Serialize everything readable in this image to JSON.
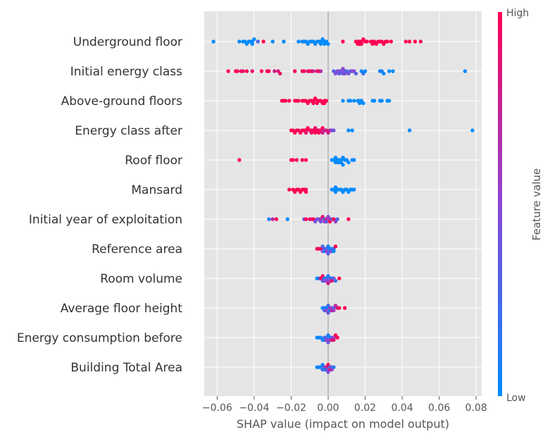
{
  "chart_data": {
    "type": "scatter",
    "subtype": "shap-beeswarm",
    "title": "",
    "xlabel": "SHAP value (impact on model output)",
    "ylabel": "",
    "xlim": [
      -0.067,
      0.083
    ],
    "xticks": [
      -0.06,
      -0.04,
      -0.02,
      0.0,
      0.02,
      0.04,
      0.06,
      0.08
    ],
    "xtick_labels": [
      "−0.06",
      "−0.04",
      "−0.02",
      "0.00",
      "0.02",
      "0.04",
      "0.06",
      "0.08"
    ],
    "grid": true,
    "colorbar": {
      "title": "Feature value",
      "high_label": "High",
      "low_label": "Low",
      "low_color": "#008bfb",
      "mid_color": "#8a46d6",
      "high_color": "#ff0052"
    },
    "features": [
      {
        "name": "Underground floor",
        "x": [
          -0.062,
          -0.048,
          -0.046,
          -0.045,
          -0.044,
          -0.043,
          -0.042,
          -0.041,
          -0.041,
          -0.04,
          -0.038,
          -0.035,
          -0.03,
          -0.024,
          -0.016,
          -0.014,
          -0.013,
          -0.012,
          -0.011,
          -0.01,
          -0.009,
          -0.008,
          -0.007,
          -0.006,
          -0.005,
          -0.004,
          -0.004,
          -0.003,
          -0.002,
          -0.002,
          -0.001,
          0.0,
          0.008,
          0.015,
          0.016,
          0.016,
          0.017,
          0.017,
          0.018,
          0.018,
          0.019,
          0.02,
          0.021,
          0.023,
          0.024,
          0.024,
          0.025,
          0.026,
          0.027,
          0.028,
          0.029,
          0.03,
          0.031,
          0.032,
          0.034,
          0.042,
          0.044,
          0.047,
          0.05
        ],
        "c": [
          0,
          0,
          0,
          0,
          0,
          0,
          0,
          0,
          0,
          0,
          0.3,
          1,
          0,
          0,
          0,
          0,
          0,
          0,
          0,
          0,
          0,
          0,
          0,
          0,
          0,
          0,
          0,
          0,
          0,
          0,
          0,
          0,
          1,
          1,
          1,
          1,
          1,
          1,
          1,
          1,
          1,
          1,
          1,
          1,
          1,
          1,
          1,
          1,
          1,
          1,
          1,
          1,
          1,
          1,
          1,
          1,
          1,
          1,
          1
        ]
      },
      {
        "name": "Initial energy class",
        "x": [
          -0.054,
          -0.05,
          -0.049,
          -0.047,
          -0.046,
          -0.044,
          -0.041,
          -0.036,
          -0.033,
          -0.032,
          -0.029,
          -0.027,
          -0.026,
          -0.018,
          -0.014,
          -0.013,
          -0.011,
          -0.01,
          -0.009,
          -0.008,
          -0.006,
          -0.005,
          -0.004,
          0.003,
          0.004,
          0.005,
          0.006,
          0.006,
          0.007,
          0.008,
          0.008,
          0.009,
          0.009,
          0.01,
          0.011,
          0.012,
          0.013,
          0.014,
          0.015,
          0.018,
          0.019,
          0.02,
          0.028,
          0.029,
          0.03,
          0.033,
          0.035,
          0.074
        ],
        "c": [
          1,
          1,
          1,
          0.95,
          0.9,
          1,
          0.9,
          1,
          0.9,
          1,
          0.8,
          0.85,
          0.9,
          1,
          0.9,
          1,
          0.8,
          1,
          0.9,
          0.8,
          0.85,
          1,
          0.7,
          0.3,
          0.45,
          0.5,
          0.4,
          0.35,
          0.45,
          0.4,
          0.5,
          0.35,
          0.45,
          0.3,
          0.4,
          0.35,
          0.45,
          0.5,
          0.3,
          0.0,
          0.2,
          0.0,
          0.0,
          0.1,
          0.0,
          0.0,
          0.0,
          0.0
        ]
      },
      {
        "name": "Above-ground floors",
        "x": [
          -0.025,
          -0.024,
          -0.023,
          -0.021,
          -0.018,
          -0.017,
          -0.016,
          -0.014,
          -0.013,
          -0.012,
          -0.011,
          -0.01,
          -0.009,
          -0.008,
          -0.008,
          -0.007,
          -0.006,
          -0.006,
          -0.005,
          -0.004,
          -0.003,
          -0.002,
          -0.002,
          -0.001,
          0.008,
          0.011,
          0.012,
          0.014,
          0.016,
          0.017,
          0.017,
          0.018,
          0.019,
          0.024,
          0.025,
          0.028,
          0.029,
          0.032,
          0.033
        ],
        "c": [
          1,
          1,
          1,
          1,
          1,
          1,
          1,
          1,
          1,
          1,
          1,
          1,
          1,
          1,
          1,
          1,
          1,
          1,
          1,
          1,
          1,
          1,
          1,
          1,
          0,
          0,
          0,
          0,
          0,
          0,
          0,
          0,
          0,
          0,
          0,
          0,
          0,
          0,
          0
        ]
      },
      {
        "name": "Energy class after",
        "x": [
          -0.02,
          -0.019,
          -0.018,
          -0.017,
          -0.016,
          -0.015,
          -0.014,
          -0.013,
          -0.012,
          -0.012,
          -0.011,
          -0.01,
          -0.009,
          -0.009,
          -0.008,
          -0.007,
          -0.007,
          -0.006,
          -0.005,
          -0.005,
          -0.004,
          -0.003,
          -0.003,
          -0.002,
          -0.001,
          0.0,
          0.001,
          0.002,
          0.003,
          0.011,
          0.013,
          0.044,
          0.078
        ],
        "c": [
          1,
          1,
          1,
          1,
          0.95,
          1,
          1,
          1,
          1,
          0.9,
          1,
          1,
          1,
          0.9,
          1,
          1,
          0.9,
          1,
          0.95,
          1,
          0.9,
          0.8,
          1,
          0.7,
          0.85,
          0.8,
          0.75,
          0.5,
          0.4,
          0.0,
          0.0,
          0.0,
          0.0
        ]
      },
      {
        "name": "Roof floor",
        "x": [
          -0.048,
          -0.02,
          -0.019,
          -0.017,
          -0.014,
          -0.012,
          0.002,
          0.003,
          0.004,
          0.004,
          0.005,
          0.005,
          0.006,
          0.006,
          0.007,
          0.007,
          0.008,
          0.008,
          0.009,
          0.01,
          0.011,
          0.013,
          0.014
        ],
        "c": [
          1,
          1,
          1,
          1,
          1,
          1,
          0,
          0,
          0,
          0,
          0,
          0,
          0,
          0,
          0,
          0,
          0,
          0,
          0,
          0,
          0,
          0,
          0
        ]
      },
      {
        "name": "Mansard",
        "x": [
          -0.021,
          -0.019,
          -0.018,
          -0.017,
          -0.016,
          -0.015,
          -0.014,
          -0.013,
          -0.012,
          -0.012,
          0.002,
          0.003,
          0.004,
          0.004,
          0.005,
          0.006,
          0.007,
          0.008,
          0.009,
          0.01,
          0.011,
          0.012,
          0.013,
          0.014
        ],
        "c": [
          1,
          1,
          1,
          1,
          1,
          1,
          1,
          1,
          1,
          1,
          0,
          0,
          0,
          0,
          0,
          0,
          0,
          0,
          0,
          0,
          0,
          0,
          0,
          0
        ]
      },
      {
        "name": "Initial year of exploitation",
        "x": [
          -0.032,
          -0.03,
          -0.028,
          -0.022,
          -0.013,
          -0.012,
          -0.01,
          -0.009,
          -0.008,
          -0.007,
          -0.006,
          -0.005,
          -0.004,
          -0.004,
          -0.003,
          -0.002,
          -0.002,
          -0.001,
          -0.001,
          0.0,
          0.001,
          0.001,
          0.002,
          0.003,
          0.004,
          0.005,
          0.011
        ],
        "c": [
          0.1,
          0.7,
          1,
          0.0,
          0.4,
          1,
          0.9,
          0.85,
          1,
          0.4,
          0.5,
          0.35,
          0.6,
          0.45,
          0.9,
          0.3,
          0.55,
          0.75,
          0.4,
          0.5,
          0.65,
          1,
          0.35,
          1,
          0.55,
          0.3,
          1
        ]
      },
      {
        "name": "Reference area",
        "x": [
          -0.006,
          -0.005,
          -0.004,
          -0.003,
          -0.003,
          -0.002,
          -0.002,
          -0.001,
          -0.001,
          0.0,
          0.0,
          0.001,
          0.001,
          0.002,
          0.002,
          0.003,
          0.003,
          0.004
        ],
        "c": [
          1,
          0.9,
          1,
          0.5,
          0.3,
          0.4,
          0.0,
          0.2,
          0.5,
          0.1,
          0.35,
          0.0,
          0.3,
          0.1,
          0.45,
          0.2,
          0.0,
          1
        ]
      },
      {
        "name": "Room volume",
        "x": [
          -0.006,
          -0.005,
          -0.004,
          -0.003,
          -0.003,
          -0.002,
          -0.002,
          -0.001,
          -0.001,
          0.0,
          0.0,
          0.001,
          0.001,
          0.002,
          0.002,
          0.003,
          0.004,
          0.006
        ],
        "c": [
          0.0,
          0.1,
          1,
          0.3,
          0.9,
          0.1,
          0.45,
          0.2,
          0.5,
          0.1,
          0.8,
          0.3,
          0.6,
          0.0,
          0.9,
          0.4,
          0.2,
          1
        ]
      },
      {
        "name": "Average floor height",
        "x": [
          -0.003,
          -0.002,
          -0.002,
          -0.001,
          -0.001,
          0.0,
          0.0,
          0.001,
          0.001,
          0.002,
          0.002,
          0.003,
          0.003,
          0.004,
          0.005,
          0.006,
          0.009
        ],
        "c": [
          0.0,
          0.1,
          0.3,
          0.0,
          0.5,
          0.2,
          0.4,
          0.6,
          0.1,
          0.5,
          0.8,
          0.3,
          0.6,
          0.7,
          0.85,
          1,
          1
        ]
      },
      {
        "name": "Energy consumption before",
        "x": [
          -0.006,
          -0.005,
          -0.004,
          -0.003,
          -0.002,
          -0.002,
          -0.001,
          -0.001,
          0.0,
          0.0,
          0.001,
          0.001,
          0.002,
          0.002,
          0.003,
          0.003,
          0.004,
          0.005
        ],
        "c": [
          0.0,
          0.05,
          0.0,
          0.15,
          0.3,
          0.0,
          0.2,
          0.55,
          0.1,
          0.4,
          0.0,
          0.6,
          0.35,
          0.8,
          0.5,
          0.9,
          1,
          1
        ]
      },
      {
        "name": "Building Total Area",
        "x": [
          -0.006,
          -0.005,
          -0.004,
          -0.003,
          -0.003,
          -0.002,
          -0.002,
          -0.001,
          -0.001,
          0.0,
          0.0,
          0.001,
          0.001,
          0.002,
          0.002,
          0.003
        ],
        "c": [
          0.0,
          0.1,
          0.0,
          0.3,
          0.1,
          0.5,
          0.0,
          0.7,
          0.35,
          1,
          0.45,
          0.2,
          0.8,
          0.4,
          0.6,
          0.1
        ]
      }
    ]
  }
}
